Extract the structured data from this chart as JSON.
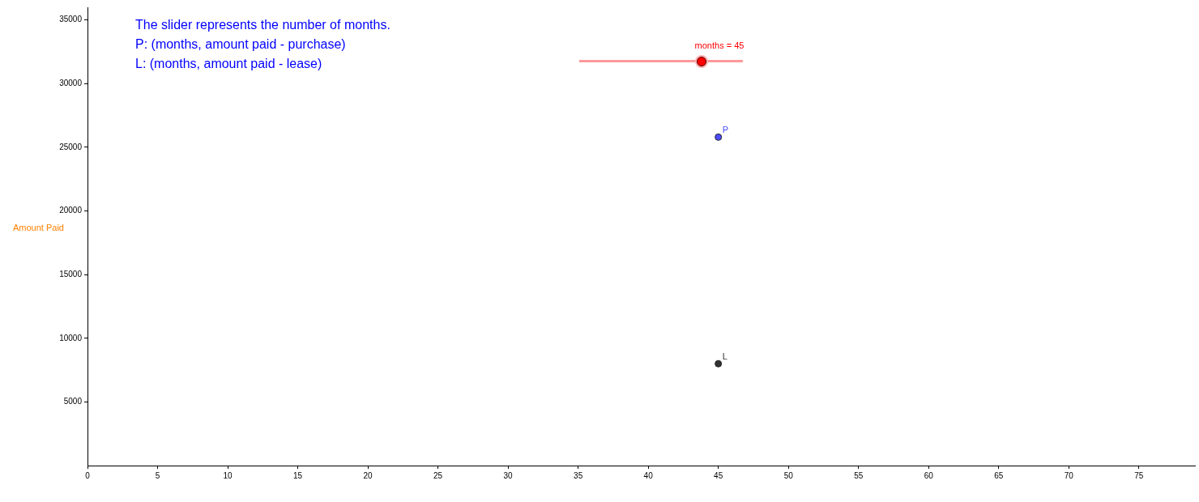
{
  "chart_data": {
    "type": "scatter",
    "ylabel": "Amount Paid",
    "annotations": [
      "The slider represents the number of months.",
      "P: (months, amount paid - purchase)",
      "L: (months, amount paid - lease)",
      "months = 45"
    ],
    "series": [
      {
        "name": "P",
        "color": "#4d4dff",
        "x": [
          45
        ],
        "values": [
          25800
        ]
      },
      {
        "name": "L",
        "color": "#333333",
        "x": [
          45
        ],
        "values": [
          8000
        ]
      }
    ],
    "xlim": [
      0,
      79
    ],
    "xticks": [
      0,
      5,
      10,
      15,
      20,
      25,
      30,
      35,
      40,
      45,
      50,
      55,
      60,
      65,
      70,
      75
    ],
    "ylim": [
      0,
      36000
    ],
    "yticks": [
      5000,
      10000,
      15000,
      20000,
      25000,
      30000,
      35000
    ],
    "grid": false,
    "legend": false,
    "marker": "circle"
  }
}
